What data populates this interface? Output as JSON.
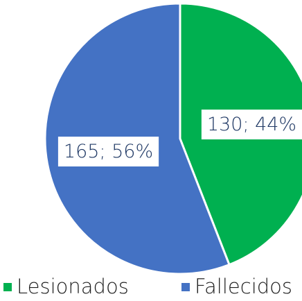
{
  "chart_data": {
    "type": "pie",
    "categories": [
      "Lesionados",
      "Fallecidos"
    ],
    "values": [
      130,
      165
    ],
    "value_labels": [
      "130; 44%",
      "165; 56%"
    ],
    "colors": [
      "#00b050",
      "#4472c4"
    ],
    "legend": "bottom"
  }
}
